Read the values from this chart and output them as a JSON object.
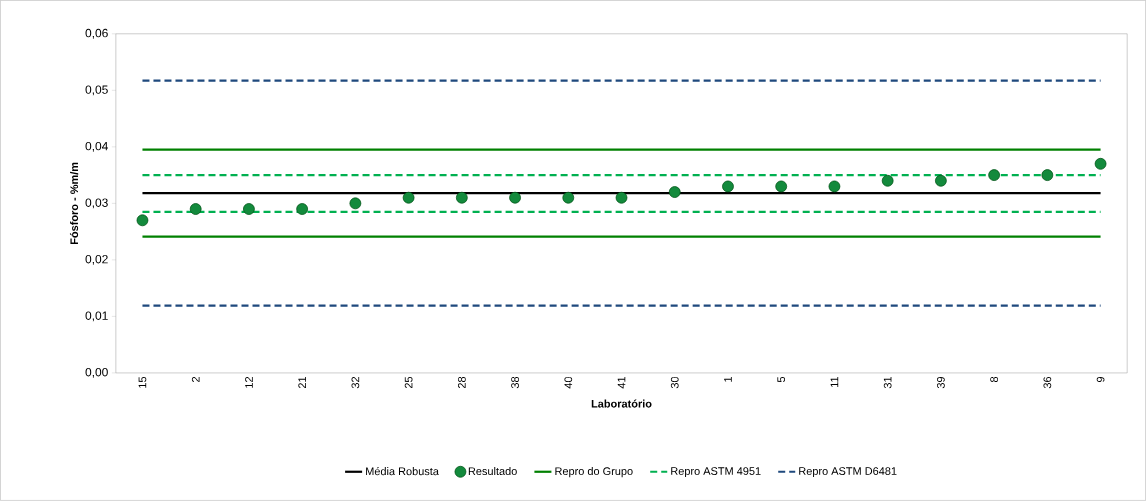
{
  "chart_data": {
    "type": "scatter",
    "xlabel": "Laboratório",
    "ylabel": "Fósforo - %m/m",
    "categories": [
      "15",
      "2",
      "12",
      "21",
      "32",
      "25",
      "28",
      "38",
      "40",
      "41",
      "30",
      "1",
      "5",
      "11",
      "31",
      "39",
      "8",
      "36",
      "9"
    ],
    "ylim": [
      0,
      0.06
    ],
    "yticks": [
      {
        "value": 0,
        "label": "0,00"
      },
      {
        "value": 0.01,
        "label": "0,01"
      },
      {
        "value": 0.02,
        "label": "0,02"
      },
      {
        "value": 0.03,
        "label": "0,03"
      },
      {
        "value": 0.04,
        "label": "0,04"
      },
      {
        "value": 0.05,
        "label": "0,05"
      },
      {
        "value": 0.06,
        "label": "0,06"
      }
    ],
    "grid": false,
    "legend": "bottom",
    "series": [
      {
        "name": "Média Robusta",
        "type": "line",
        "color": "#000000",
        "line_style": "solid",
        "marker": "none",
        "values": [
          0.0318,
          0.0318,
          0.0318,
          0.0318,
          0.0318,
          0.0318,
          0.0318,
          0.0318,
          0.0318,
          0.0318,
          0.0318,
          0.0318,
          0.0318,
          0.0318,
          0.0318,
          0.0318,
          0.0318,
          0.0318,
          0.0318
        ]
      },
      {
        "name": "Resultado",
        "color": "#138a3c",
        "marker": "circle",
        "values": [
          0.027,
          0.029,
          0.029,
          0.029,
          0.03,
          0.031,
          0.031,
          0.031,
          0.031,
          0.031,
          0.032,
          0.033,
          0.033,
          0.033,
          0.034,
          0.034,
          0.035,
          0.035,
          0.037
        ]
      },
      {
        "name": "Repro do Grupo",
        "type": "line",
        "color": "#008000",
        "line_style": "solid",
        "marker": "none",
        "values": [
          0.0395,
          0.0395,
          0.0395,
          0.0395,
          0.0395,
          0.0395,
          0.0395,
          0.0395,
          0.0395,
          0.0395,
          0.0395,
          0.0395,
          0.0395,
          0.0395,
          0.0395,
          0.0395,
          0.0395,
          0.0395,
          0.0395
        ]
      },
      {
        "type": "line",
        "color": "#008000",
        "line_style": "solid",
        "marker": "none",
        "values": [
          0.0241,
          0.0241,
          0.0241,
          0.0241,
          0.0241,
          0.0241,
          0.0241,
          0.0241,
          0.0241,
          0.0241,
          0.0241,
          0.0241,
          0.0241,
          0.0241,
          0.0241,
          0.0241,
          0.0241,
          0.0241,
          0.0241
        ]
      },
      {
        "name": "Repro ASTM 4951",
        "type": "line",
        "color": "#00b050",
        "line_style": "dashed",
        "marker": "none",
        "values": [
          0.035,
          0.035,
          0.035,
          0.035,
          0.035,
          0.035,
          0.035,
          0.035,
          0.035,
          0.035,
          0.035,
          0.035,
          0.035,
          0.035,
          0.035,
          0.035,
          0.035,
          0.035,
          0.035
        ]
      },
      {
        "type": "line",
        "color": "#00b050",
        "line_style": "dashed",
        "marker": "none",
        "values": [
          0.0285,
          0.0285,
          0.0285,
          0.0285,
          0.0285,
          0.0285,
          0.0285,
          0.0285,
          0.0285,
          0.0285,
          0.0285,
          0.0285,
          0.0285,
          0.0285,
          0.0285,
          0.0285,
          0.0285,
          0.0285,
          0.0285
        ]
      },
      {
        "name": "Repro ASTM D6481",
        "type": "line",
        "color": "#1f497d",
        "line_style": "dashed",
        "marker": "none",
        "values": [
          0.0517,
          0.0517,
          0.0517,
          0.0517,
          0.0517,
          0.0517,
          0.0517,
          0.0517,
          0.0517,
          0.0517,
          0.0517,
          0.0517,
          0.0517,
          0.0517,
          0.0517,
          0.0517,
          0.0517,
          0.0517,
          0.0517
        ]
      },
      {
        "type": "line",
        "color": "#1f497d",
        "line_style": "dashed",
        "marker": "none",
        "values": [
          0.0119,
          0.0119,
          0.0119,
          0.0119,
          0.0119,
          0.0119,
          0.0119,
          0.0119,
          0.0119,
          0.0119,
          0.0119,
          0.0119,
          0.0119,
          0.0119,
          0.0119,
          0.0119,
          0.0119,
          0.0119,
          0.0119
        ]
      }
    ]
  }
}
